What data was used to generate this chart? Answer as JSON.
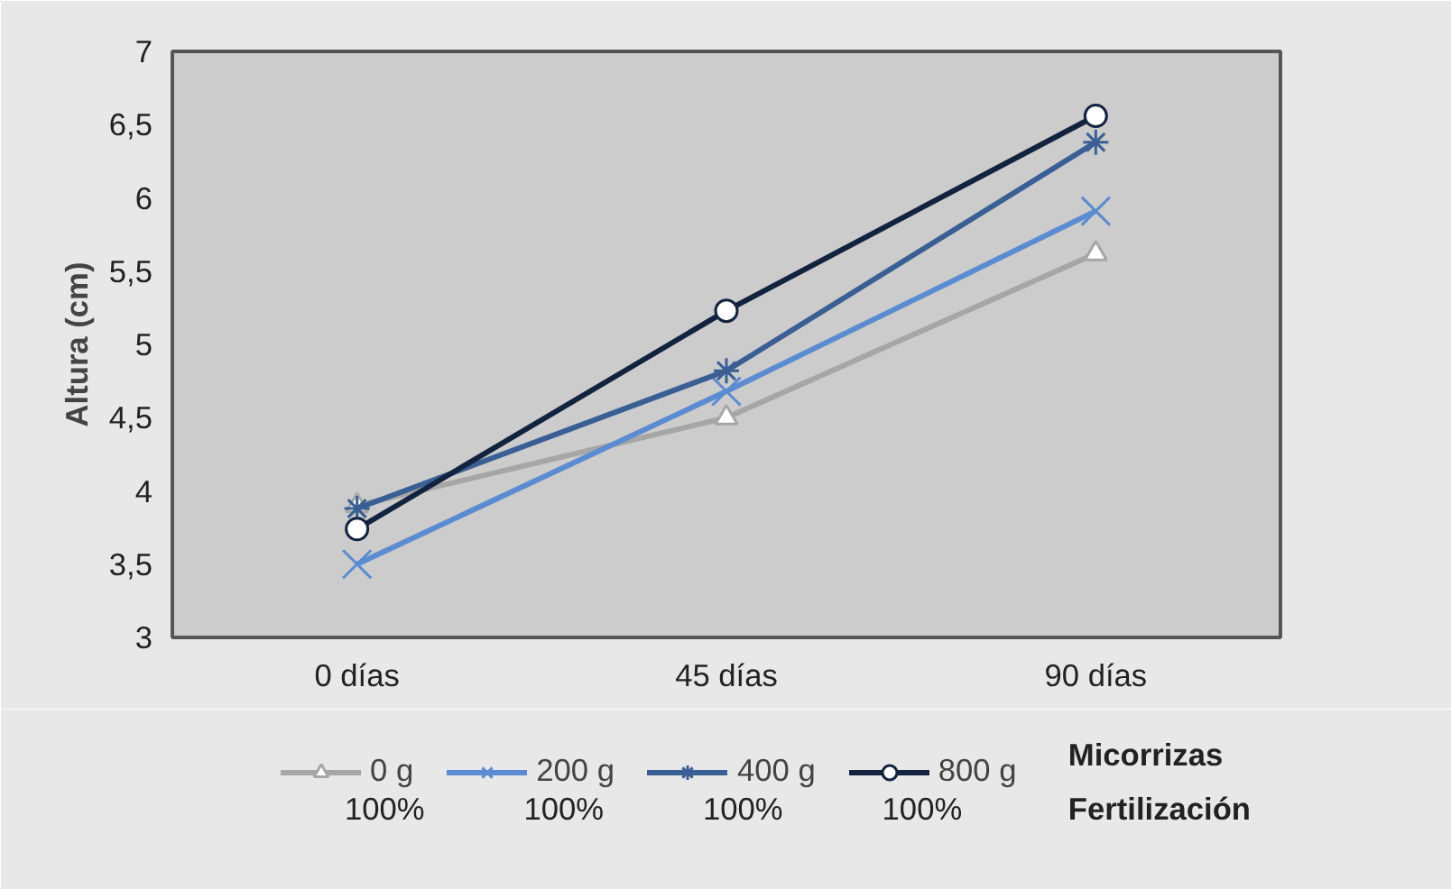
{
  "chart_data": {
    "type": "line",
    "ylabel": "Altura (cm)",
    "categories": [
      "0 días",
      "45 días",
      "90 días"
    ],
    "ylim": [
      3,
      7
    ],
    "yticks": [
      3,
      {
        "value": 3.5,
        "label": "3,5"
      },
      4,
      {
        "value": 4.5,
        "label": "4,5"
      },
      5,
      {
        "value": 5.5,
        "label": "5,5"
      },
      6,
      {
        "value": 6.5,
        "label": "6,5"
      },
      7
    ],
    "grid": false,
    "legend": "bottom",
    "series": [
      {
        "name": "0 g",
        "color": "#a6a6a6",
        "marker": "triangle",
        "values": [
          3.9,
          4.5,
          5.62
        ]
      },
      {
        "name": "200 g",
        "color": "#5b8bd0",
        "marker": "x",
        "values": [
          3.5,
          4.68,
          5.91
        ]
      },
      {
        "name": "400 g",
        "color": "#3a5f94",
        "marker": "cross",
        "values": [
          3.88,
          4.82,
          6.38
        ]
      },
      {
        "name": "800 g",
        "color": "#12233f",
        "marker": "circle",
        "values": [
          3.74,
          5.23,
          6.56
        ]
      }
    ],
    "annotations": [
      "Micorrizas",
      "Fertilización",
      "100%",
      "100%",
      "100%",
      "100%"
    ]
  }
}
